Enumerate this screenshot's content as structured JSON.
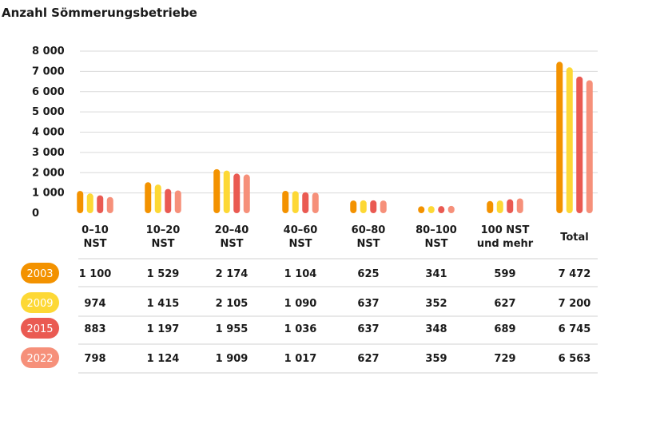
{
  "title": "Anzahl Sömmerungsbetriebe",
  "colors": {
    "2003": "#f39200",
    "2009": "#fdd835",
    "2015": "#ea5a52",
    "2022": "#f6907a"
  },
  "chart_data": {
    "type": "bar",
    "title": "Anzahl Sömmerungsbetriebe",
    "categories": [
      [
        "0–10",
        "NST"
      ],
      [
        "10–20",
        "NST"
      ],
      [
        "20–40",
        "NST"
      ],
      [
        "40–60",
        "NST"
      ],
      [
        "60–80",
        "NST"
      ],
      [
        "80–100",
        "NST"
      ],
      [
        "100 NST",
        "und mehr"
      ],
      [
        "Total"
      ]
    ],
    "ylim": [
      0,
      8000
    ],
    "yticks": [
      0,
      1000,
      2000,
      3000,
      4000,
      5000,
      6000,
      7000,
      8000
    ],
    "ytick_labels": [
      "0",
      "1 000",
      "2 000",
      "3 000",
      "4 000",
      "5 000",
      "6 000",
      "7 000",
      "8 000"
    ],
    "grid": true,
    "series": [
      {
        "name": "2003",
        "values": [
          1100,
          1529,
          2174,
          1104,
          625,
          341,
          599,
          7472
        ],
        "labels": [
          "1 100",
          "1 529",
          "2 174",
          "1 104",
          "625",
          "341",
          "599",
          "7 472"
        ]
      },
      {
        "name": "2009",
        "values": [
          974,
          1415,
          2105,
          1090,
          637,
          352,
          627,
          7200
        ],
        "labels": [
          "974",
          "1 415",
          "2 105",
          "1 090",
          "637",
          "352",
          "627",
          "7 200"
        ]
      },
      {
        "name": "2015",
        "values": [
          883,
          1197,
          1955,
          1036,
          637,
          348,
          689,
          6745
        ],
        "labels": [
          "883",
          "1 197",
          "1 955",
          "1 036",
          "637",
          "348",
          "689",
          "6 745"
        ]
      },
      {
        "name": "2022",
        "values": [
          798,
          1124,
          1909,
          1017,
          627,
          359,
          729,
          6563
        ],
        "labels": [
          "798",
          "1 124",
          "1 909",
          "1 017",
          "627",
          "359",
          "729",
          "6 563"
        ]
      }
    ]
  }
}
